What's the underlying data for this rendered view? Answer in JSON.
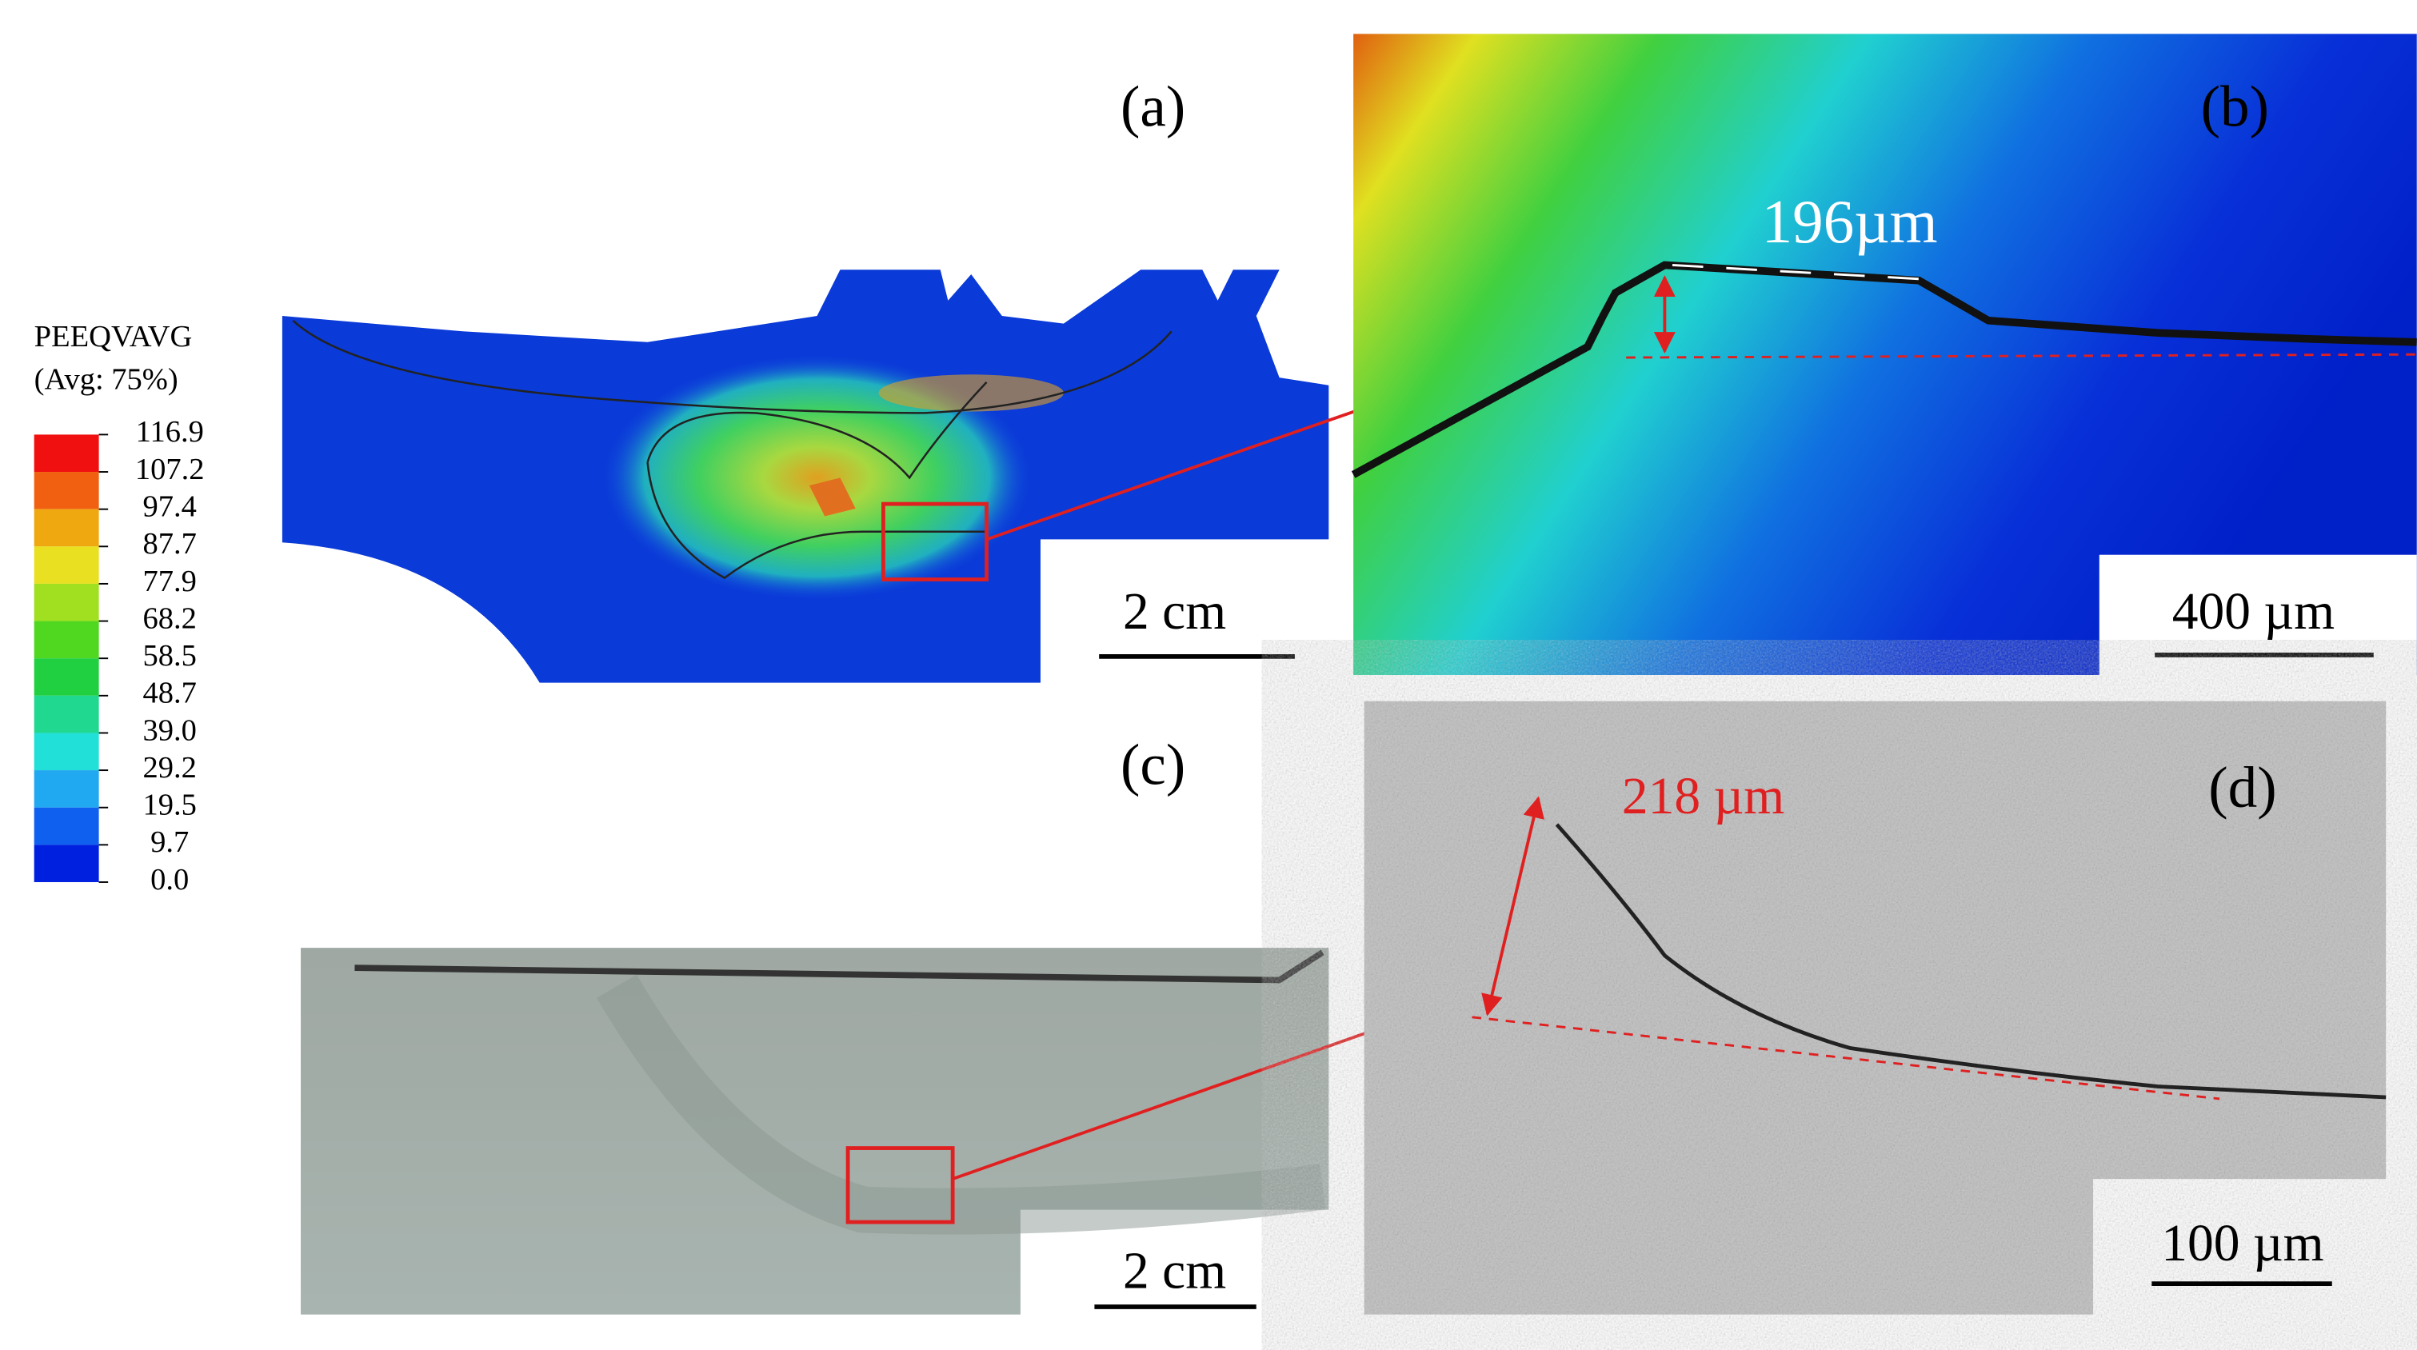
{
  "legend": {
    "title": "PEEQVAVG",
    "subtitle": "(Avg: 75%)",
    "levels": [
      "116.9",
      "107.2",
      "97.4",
      "87.7",
      "77.9",
      "68.2",
      "58.5",
      "48.7",
      "39.0",
      "29.2",
      "19.5",
      "9.7",
      "0.0"
    ]
  },
  "panels": [
    {
      "label": "(a)",
      "scale_bar": "2 cm"
    },
    {
      "label": "(b)",
      "scale_bar": "400 µm",
      "measurement": "196µm"
    },
    {
      "label": "(c)",
      "scale_bar": "2 cm"
    },
    {
      "label": "(d)",
      "scale_bar": "100 µm",
      "measurement": "218 µm"
    }
  ]
}
